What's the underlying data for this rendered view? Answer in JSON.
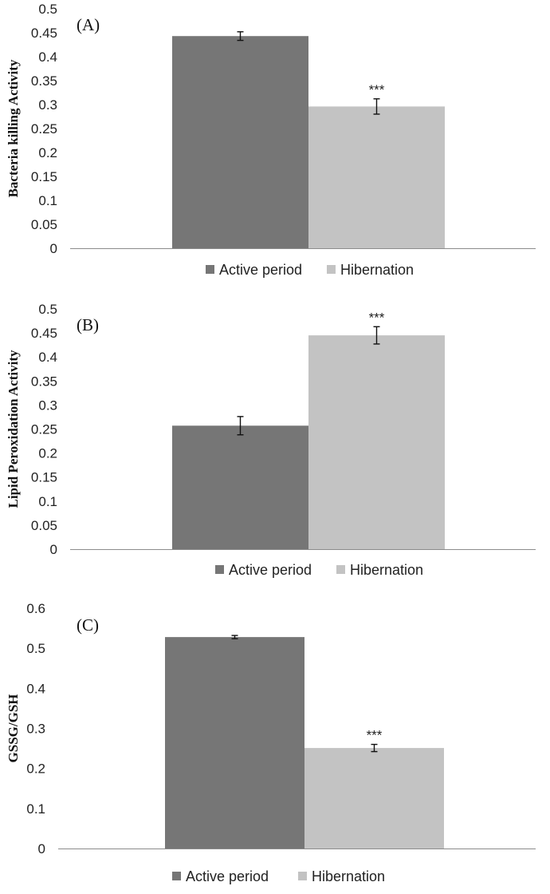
{
  "chart_data": [
    {
      "type": "bar",
      "panel_label": "(A)",
      "ylabel": "Bacteria killing Activity",
      "categories": [
        "Active period",
        "Hibernation"
      ],
      "values": [
        0.443,
        0.296
      ],
      "errors": [
        0.009,
        0.016
      ],
      "annotations": [
        "",
        "***"
      ],
      "colors": [
        "#767676",
        "#c3c3c3"
      ],
      "ylim": [
        0,
        0.5
      ],
      "yticks": [
        "0",
        "0.05",
        "0.1",
        "0.15",
        "0.2",
        "0.25",
        "0.3",
        "0.35",
        "0.4",
        "0.45",
        "0.5"
      ],
      "legend": [
        "Active period",
        "Hibernation"
      ],
      "legend_position": "bottom"
    },
    {
      "type": "bar",
      "panel_label": "(B)",
      "ylabel": "Lipid Peroxidation Activity",
      "categories": [
        "Active period",
        "Hibernation"
      ],
      "values": [
        0.257,
        0.445
      ],
      "errors": [
        0.019,
        0.018
      ],
      "annotations": [
        "",
        "***"
      ],
      "colors": [
        "#767676",
        "#c3c3c3"
      ],
      "ylim": [
        0,
        0.5
      ],
      "yticks": [
        "0",
        "0.05",
        "0.1",
        "0.15",
        "0.2",
        "0.25",
        "0.3",
        "0.35",
        "0.4",
        "0.45",
        "0.5"
      ],
      "legend": [
        "Active period",
        "Hibernation"
      ],
      "legend_position": "bottom"
    },
    {
      "type": "bar",
      "panel_label": "(C)",
      "ylabel": "GSSG/GSH",
      "categories": [
        "Active period",
        "Hibernation"
      ],
      "values": [
        0.528,
        0.251
      ],
      "errors": [
        0.004,
        0.009
      ],
      "annotations": [
        "",
        "***"
      ],
      "colors": [
        "#767676",
        "#c3c3c3"
      ],
      "ylim": [
        0,
        0.6
      ],
      "yticks": [
        "0",
        "0.1",
        "0.2",
        "0.3",
        "0.4",
        "0.5",
        "0.6"
      ],
      "legend": [
        "Active period",
        "Hibernation"
      ],
      "legend_position": "bottom"
    }
  ]
}
